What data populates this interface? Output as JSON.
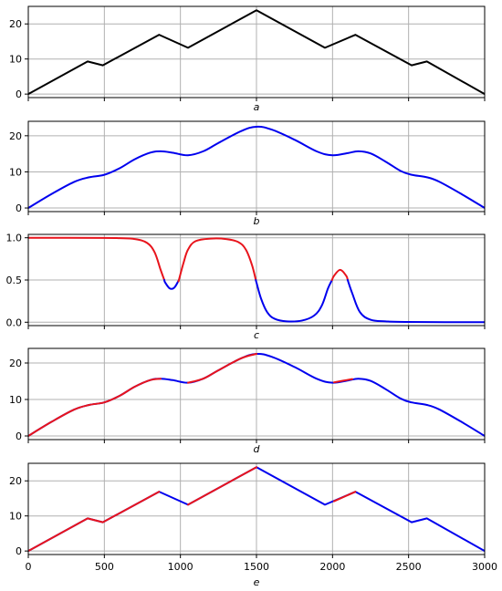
{
  "chart_data": [
    {
      "type": "line",
      "panel_label": "a",
      "xlim": [
        0,
        3000
      ],
      "ylim": [
        -1,
        25
      ],
      "xticks": [
        0,
        500,
        1000,
        1500,
        2000,
        2500,
        3000
      ],
      "yticks": [
        0,
        10,
        20
      ],
      "ytick_labels": [
        "0",
        "10",
        "20"
      ],
      "show_xtick_labels": false,
      "grid": true,
      "series": [
        {
          "color": "#000000",
          "x": [
            0,
            390,
            490,
            860,
            1050,
            1500,
            1950,
            2150,
            2520,
            2620,
            3000
          ],
          "y": [
            0,
            9.3,
            8.2,
            16.9,
            13.2,
            23.9,
            13.2,
            16.9,
            8.2,
            9.3,
            0
          ]
        }
      ]
    },
    {
      "type": "line",
      "panel_label": "b",
      "xlim": [
        0,
        3000
      ],
      "ylim": [
        -1,
        24
      ],
      "xticks": [
        0,
        500,
        1000,
        1500,
        2000,
        2500,
        3000
      ],
      "yticks": [
        0,
        10,
        20
      ],
      "ytick_labels": [
        "0",
        "10",
        "20"
      ],
      "show_xtick_labels": false,
      "grid": true,
      "series": [
        {
          "color": "#0000ee",
          "x": [
            0,
            150,
            300,
            400,
            500,
            600,
            700,
            800,
            870,
            950,
            1050,
            1150,
            1250,
            1400,
            1500,
            1600,
            1750,
            1900,
            2000,
            2100,
            2170,
            2250,
            2350,
            2450,
            2520,
            2620,
            2700,
            2850,
            3000
          ],
          "y": [
            0,
            3.8,
            7.2,
            8.5,
            9.2,
            11,
            13.5,
            15.3,
            15.7,
            15.3,
            14.6,
            15.7,
            18,
            21.3,
            22.5,
            21.7,
            18.9,
            15.6,
            14.6,
            15.2,
            15.7,
            15.1,
            12.8,
            10.2,
            9.2,
            8.5,
            7.3,
            3.8,
            0
          ]
        }
      ]
    },
    {
      "type": "line",
      "panel_label": "c",
      "xlim": [
        0,
        3000
      ],
      "ylim": [
        -0.04,
        1.04
      ],
      "xticks": [
        0,
        500,
        1000,
        1500,
        2000,
        2500,
        3000
      ],
      "yticks": [
        0,
        0.5,
        1.0
      ],
      "ytick_labels": [
        "0.0",
        "0.5",
        "1.0"
      ],
      "show_xtick_labels": false,
      "grid": true,
      "series": [
        {
          "color_above": "#e8141c",
          "color_below": "#0000ee",
          "switch_threshold": 0.5,
          "x": [
            0,
            500,
            600,
            700,
            780,
            830,
            870,
            900,
            930,
            960,
            990,
            1020,
            1050,
            1100,
            1200,
            1300,
            1380,
            1430,
            1470,
            1500,
            1530,
            1570,
            1620,
            1700,
            1800,
            1880,
            1930,
            1970,
            2010,
            2050,
            2090,
            2130,
            2180,
            2250,
            2350,
            2500,
            3000
          ],
          "y": [
            1.0,
            0.998,
            0.995,
            0.985,
            0.94,
            0.83,
            0.62,
            0.47,
            0.4,
            0.41,
            0.5,
            0.7,
            0.86,
            0.96,
            0.99,
            0.985,
            0.95,
            0.86,
            0.68,
            0.47,
            0.28,
            0.12,
            0.04,
            0.01,
            0.02,
            0.08,
            0.2,
            0.4,
            0.55,
            0.62,
            0.55,
            0.34,
            0.12,
            0.03,
            0.01,
            0.003,
            0
          ]
        }
      ]
    },
    {
      "type": "line",
      "panel_label": "d",
      "xlim": [
        0,
        3000
      ],
      "ylim": [
        -1,
        24
      ],
      "xticks": [
        0,
        500,
        1000,
        1500,
        2000,
        2500,
        3000
      ],
      "yticks": [
        0,
        10,
        20
      ],
      "ytick_labels": [
        "0",
        "10",
        "20"
      ],
      "show_xtick_labels": false,
      "grid": true,
      "series": [
        {
          "color": "#0000ee",
          "x": [
            0,
            150,
            300,
            400,
            500,
            600,
            700,
            800,
            870,
            950,
            1050,
            1150,
            1250,
            1400,
            1500,
            1600,
            1750,
            1900,
            2000,
            2100,
            2170,
            2250,
            2350,
            2450,
            2520,
            2620,
            2700,
            2850,
            3000
          ],
          "y": [
            0,
            3.8,
            7.2,
            8.5,
            9.2,
            11,
            13.5,
            15.3,
            15.7,
            15.3,
            14.6,
            15.7,
            18,
            21.3,
            22.5,
            21.7,
            18.9,
            15.6,
            14.6,
            15.2,
            15.7,
            15.1,
            12.8,
            10.2,
            9.2,
            8.5,
            7.3,
            3.8,
            0
          ]
        },
        {
          "color": "#e8141c",
          "x": [
            0,
            150,
            300,
            400,
            500,
            600,
            700,
            800,
            870
          ],
          "y": [
            0,
            3.8,
            7.2,
            8.5,
            9.2,
            11,
            13.5,
            15.3,
            15.7
          ]
        },
        {
          "color": "#e8141c",
          "x": [
            1050,
            1150,
            1250,
            1400,
            1500
          ],
          "y": [
            14.6,
            15.7,
            18,
            21.3,
            22.5
          ]
        },
        {
          "color": "#e8141c",
          "x": [
            2010,
            2050,
            2090,
            2130
          ],
          "y": [
            14.7,
            15,
            15.3,
            15.6
          ]
        }
      ]
    },
    {
      "type": "line",
      "panel_label": "e",
      "xlim": [
        0,
        3000
      ],
      "ylim": [
        -1,
        25
      ],
      "xticks": [
        0,
        500,
        1000,
        1500,
        2000,
        2500,
        3000
      ],
      "xtick_labels": [
        "0",
        "500",
        "1000",
        "1500",
        "2000",
        "2500",
        "3000"
      ],
      "yticks": [
        0,
        10,
        20
      ],
      "ytick_labels": [
        "0",
        "10",
        "20"
      ],
      "show_xtick_labels": true,
      "grid": true,
      "series": [
        {
          "color": "#0000ee",
          "x": [
            0,
            390,
            490,
            860,
            1050,
            1500,
            1950,
            2150,
            2520,
            2620,
            3000
          ],
          "y": [
            0,
            9.3,
            8.2,
            16.9,
            13.2,
            23.9,
            13.2,
            16.9,
            8.2,
            9.3,
            0
          ]
        },
        {
          "color": "#e8141c",
          "x": [
            0,
            390,
            490,
            860
          ],
          "y": [
            0,
            9.3,
            8.2,
            16.9
          ]
        },
        {
          "color": "#e8141c",
          "x": [
            1050,
            1500
          ],
          "y": [
            13.2,
            23.9
          ]
        },
        {
          "color": "#e8141c",
          "x": [
            2010,
            2150
          ],
          "y": [
            14.2,
            16.9
          ]
        }
      ]
    }
  ]
}
